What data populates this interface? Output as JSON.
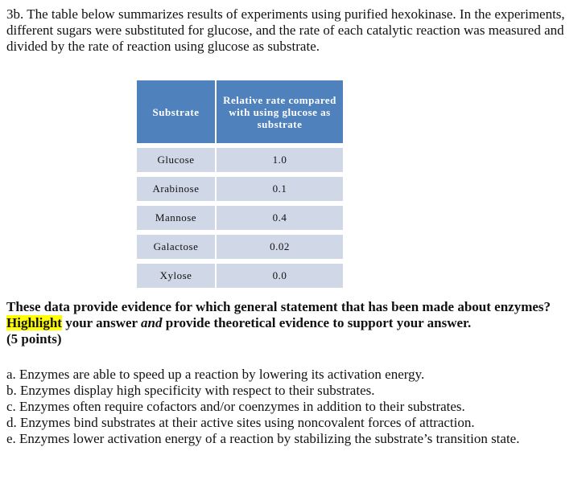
{
  "intro": "3b. The table below summarizes results of experiments using purified hexokinase. In the experiments, different sugars were substituted for glucose, and the rate of each catalytic reaction was measured and divided by the rate of reaction using glucose as substrate.",
  "table": {
    "header": [
      "Substrate",
      "Relative rate compared with using glucose as substrate"
    ],
    "rows": [
      [
        "Glucose",
        "1.0"
      ],
      [
        "Arabinose",
        "0.1"
      ],
      [
        "Mannose",
        "0.4"
      ],
      [
        "Galactose",
        "0.02"
      ],
      [
        "Xylose",
        "0.0"
      ]
    ]
  },
  "question": {
    "parts": [
      "These data provide evidence for which general statement that has been made about enzymes? ",
      "Highlight",
      " your answer ",
      "and",
      " provide theoretical evidence to support your answer."
    ],
    "points": "(5 points)"
  },
  "options": [
    "a. Enzymes are able to speed up a reaction by lowering its activation energy.",
    "b. Enzymes display high specificity with respect to their substrates.",
    "c. Enzymes often require cofactors and/or coenzymes in addition to their substrates.",
    "d. Enzymes bind substrates at their active sites using noncovalent forces of attraction.",
    "e. Enzymes lower activation energy of a reaction by stabilizing the substrate’s transition state."
  ]
}
